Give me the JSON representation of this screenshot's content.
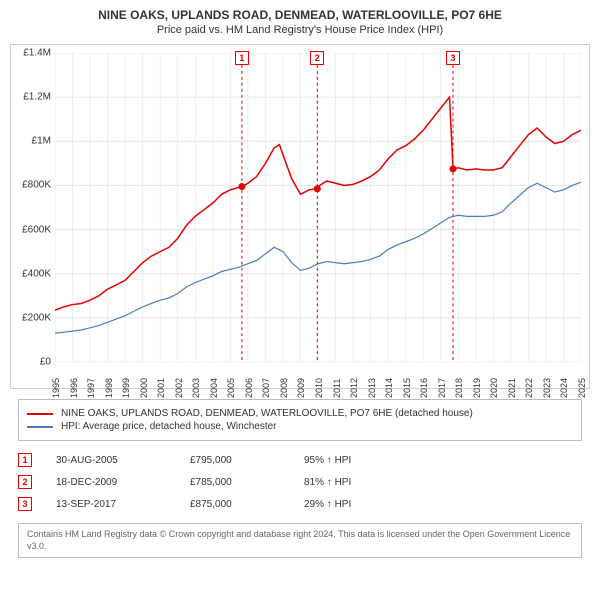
{
  "title": {
    "main": "NINE OAKS, UPLANDS ROAD, DENMEAD, WATERLOOVILLE, PO7 6HE",
    "sub": "Price paid vs. HM Land Registry's House Price Index (HPI)"
  },
  "chart": {
    "type": "line",
    "background_color": "#ffffff",
    "border_color": "#cccccc",
    "grid_color": "#e4e4e4",
    "ylim": [
      0,
      1400000
    ],
    "ytick_step": 200000,
    "ylabels": [
      "£0",
      "£200K",
      "£400K",
      "£600K",
      "£800K",
      "£1M",
      "£1.2M",
      "£1.4M"
    ],
    "xlim": [
      1995,
      2025
    ],
    "xticks": [
      1995,
      1996,
      1997,
      1998,
      1999,
      2000,
      2001,
      2002,
      2003,
      2004,
      2005,
      2006,
      2007,
      2008,
      2009,
      2010,
      2011,
      2012,
      2013,
      2014,
      2015,
      2016,
      2017,
      2018,
      2019,
      2020,
      2021,
      2022,
      2023,
      2024,
      2025
    ],
    "series": [
      {
        "id": "price_paid",
        "label": "NINE OAKS, UPLANDS ROAD, DENMEAD, WATERLOOVILLE, PO7 6HE (detached house)",
        "color": "#e60000",
        "width": 1.5,
        "points": [
          [
            1995,
            235000
          ],
          [
            1995.5,
            250000
          ],
          [
            1996,
            260000
          ],
          [
            1996.5,
            265000
          ],
          [
            1997,
            280000
          ],
          [
            1997.5,
            300000
          ],
          [
            1998,
            330000
          ],
          [
            1998.5,
            350000
          ],
          [
            1999,
            370000
          ],
          [
            1999.5,
            410000
          ],
          [
            2000,
            450000
          ],
          [
            2000.5,
            480000
          ],
          [
            2001,
            500000
          ],
          [
            2001.5,
            520000
          ],
          [
            2002,
            560000
          ],
          [
            2002.5,
            620000
          ],
          [
            2003,
            660000
          ],
          [
            2003.5,
            690000
          ],
          [
            2004,
            720000
          ],
          [
            2004.5,
            760000
          ],
          [
            2005,
            780000
          ],
          [
            2005.66,
            795000
          ],
          [
            2006,
            810000
          ],
          [
            2006.5,
            840000
          ],
          [
            2007,
            900000
          ],
          [
            2007.5,
            970000
          ],
          [
            2007.8,
            985000
          ],
          [
            2008,
            940000
          ],
          [
            2008.5,
            830000
          ],
          [
            2009,
            760000
          ],
          [
            2009.5,
            780000
          ],
          [
            2009.96,
            785000
          ],
          [
            2010,
            795000
          ],
          [
            2010.5,
            820000
          ],
          [
            2011,
            810000
          ],
          [
            2011.5,
            800000
          ],
          [
            2012,
            805000
          ],
          [
            2012.5,
            820000
          ],
          [
            2013,
            840000
          ],
          [
            2013.5,
            870000
          ],
          [
            2014,
            920000
          ],
          [
            2014.5,
            960000
          ],
          [
            2015,
            980000
          ],
          [
            2015.5,
            1010000
          ],
          [
            2016,
            1050000
          ],
          [
            2016.5,
            1100000
          ],
          [
            2017,
            1150000
          ],
          [
            2017.5,
            1200000
          ],
          [
            2017.7,
            875000
          ],
          [
            2018,
            880000
          ],
          [
            2018.5,
            870000
          ],
          [
            2019,
            875000
          ],
          [
            2019.5,
            870000
          ],
          [
            2020,
            870000
          ],
          [
            2020.5,
            880000
          ],
          [
            2021,
            930000
          ],
          [
            2021.5,
            980000
          ],
          [
            2022,
            1030000
          ],
          [
            2022.5,
            1060000
          ],
          [
            2023,
            1020000
          ],
          [
            2023.5,
            990000
          ],
          [
            2024,
            1000000
          ],
          [
            2024.5,
            1030000
          ],
          [
            2025,
            1050000
          ]
        ]
      },
      {
        "id": "hpi",
        "label": "HPI: Average price, detached house, Winchester",
        "color": "#4a7ebb",
        "width": 1.2,
        "points": [
          [
            1995,
            130000
          ],
          [
            1995.5,
            135000
          ],
          [
            1996,
            140000
          ],
          [
            1996.5,
            145000
          ],
          [
            1997,
            155000
          ],
          [
            1997.5,
            165000
          ],
          [
            1998,
            180000
          ],
          [
            1998.5,
            195000
          ],
          [
            1999,
            210000
          ],
          [
            1999.5,
            230000
          ],
          [
            2000,
            250000
          ],
          [
            2000.5,
            265000
          ],
          [
            2001,
            280000
          ],
          [
            2001.5,
            290000
          ],
          [
            2002,
            310000
          ],
          [
            2002.5,
            340000
          ],
          [
            2003,
            360000
          ],
          [
            2003.5,
            375000
          ],
          [
            2004,
            390000
          ],
          [
            2004.5,
            410000
          ],
          [
            2005,
            420000
          ],
          [
            2005.5,
            430000
          ],
          [
            2006,
            445000
          ],
          [
            2006.5,
            460000
          ],
          [
            2007,
            490000
          ],
          [
            2007.5,
            520000
          ],
          [
            2008,
            500000
          ],
          [
            2008.5,
            450000
          ],
          [
            2009,
            415000
          ],
          [
            2009.5,
            425000
          ],
          [
            2010,
            445000
          ],
          [
            2010.5,
            455000
          ],
          [
            2011,
            450000
          ],
          [
            2011.5,
            445000
          ],
          [
            2012,
            450000
          ],
          [
            2012.5,
            455000
          ],
          [
            2013,
            465000
          ],
          [
            2013.5,
            480000
          ],
          [
            2014,
            510000
          ],
          [
            2014.5,
            530000
          ],
          [
            2015,
            545000
          ],
          [
            2015.5,
            560000
          ],
          [
            2016,
            580000
          ],
          [
            2016.5,
            605000
          ],
          [
            2017,
            630000
          ],
          [
            2017.5,
            655000
          ],
          [
            2018,
            665000
          ],
          [
            2018.5,
            660000
          ],
          [
            2019,
            660000
          ],
          [
            2019.5,
            660000
          ],
          [
            2020,
            665000
          ],
          [
            2020.5,
            680000
          ],
          [
            2021,
            720000
          ],
          [
            2021.5,
            755000
          ],
          [
            2022,
            790000
          ],
          [
            2022.5,
            810000
          ],
          [
            2023,
            790000
          ],
          [
            2023.5,
            770000
          ],
          [
            2024,
            780000
          ],
          [
            2024.5,
            800000
          ],
          [
            2025,
            815000
          ]
        ]
      }
    ],
    "transaction_markers": [
      {
        "idx": "1",
        "x": 2005.66,
        "y": 795000,
        "line_color": "#e60000",
        "dot_color": "#e60000"
      },
      {
        "idx": "2",
        "x": 2009.96,
        "y": 785000,
        "line_color": "#e60000",
        "dot_color": "#e60000"
      },
      {
        "idx": "3",
        "x": 2017.7,
        "y": 875000,
        "line_color": "#e60000",
        "dot_color": "#e60000"
      }
    ],
    "event_box_y_offset": -2
  },
  "legend": {
    "rows": [
      {
        "color": "#e60000",
        "label": "NINE OAKS, UPLANDS ROAD, DENMEAD, WATERLOOVILLE, PO7 6HE (detached house)"
      },
      {
        "color": "#4a7ebb",
        "label": "HPI: Average price, detached house, Winchester"
      }
    ]
  },
  "transactions": [
    {
      "idx": "1",
      "date": "30-AUG-2005",
      "price": "£795,000",
      "delta": "95% ↑ HPI"
    },
    {
      "idx": "2",
      "date": "18-DEC-2009",
      "price": "£785,000",
      "delta": "81% ↑ HPI"
    },
    {
      "idx": "3",
      "date": "13-SEP-2017",
      "price": "£875,000",
      "delta": "29% ↑ HPI"
    }
  ],
  "footnote": "Contains HM Land Registry data © Crown copyright and database right 2024. This data is licensed under the Open Government Licence v3.0."
}
